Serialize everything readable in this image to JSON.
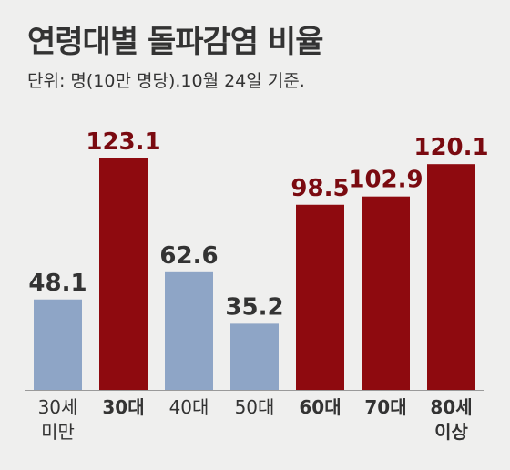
{
  "title": "연령대별 돌파감염 비율",
  "subtitle": "단위: 명(10만 명당).10월 24일 기준.",
  "chart_data": {
    "type": "bar",
    "title": "연령대별 돌파감염 비율",
    "subtitle": "단위: 명(10만 명당).10월 24일 기준.",
    "categories": [
      [
        "30세",
        "미만"
      ],
      [
        "30대"
      ],
      [
        "40대"
      ],
      [
        "50대"
      ],
      [
        "60대"
      ],
      [
        "70대"
      ],
      [
        "80세",
        "이상"
      ]
    ],
    "values": [
      48.1,
      123.1,
      62.6,
      35.2,
      98.5,
      102.9,
      120.1
    ],
    "value_labels": [
      "48.1",
      "123.1",
      "62.6",
      "35.2",
      "98.5",
      "102.9",
      "120.1"
    ],
    "highlight": [
      false,
      true,
      false,
      false,
      true,
      true,
      true
    ],
    "colors": {
      "normal_bar": "#8ea5c6",
      "highlight_bar": "#8e0a0f",
      "normal_text": "#333333",
      "highlight_text": "#7a0a10",
      "baseline": "#9a9a9a"
    },
    "ylim": [
      0,
      130
    ],
    "grid": false,
    "legend": "none"
  }
}
